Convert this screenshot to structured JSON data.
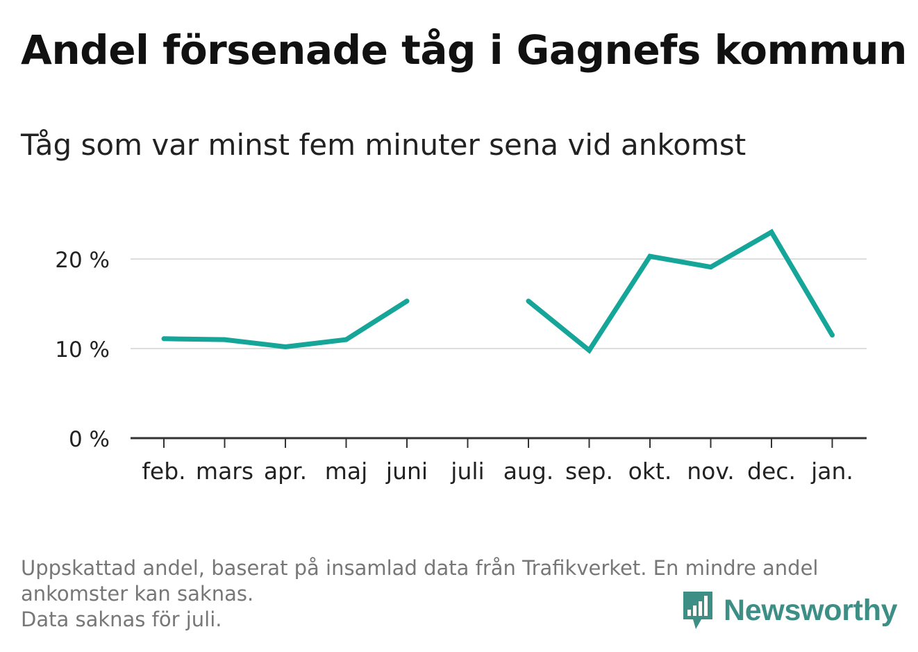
{
  "title": "Andel försenade tåg i Gagnefs kommun",
  "subtitle": "Tåg som var minst fem minuter sena vid ankomst",
  "footnote": {
    "line1": "Uppskattad andel, baserat på insamlad data från Trafikverket. En mindre andel",
    "line2": "ankomster kan saknas.",
    "line3": "Data saknas för juli."
  },
  "brand": {
    "name": "Newsworthy",
    "color": "#3d8f86"
  },
  "colors": {
    "line": "#16a599",
    "grid": "#dddddd",
    "axis": "#333333"
  },
  "chart_data": {
    "type": "line",
    "categories": [
      "feb.",
      "mars",
      "apr.",
      "maj",
      "juni",
      "juli",
      "aug.",
      "sep.",
      "okt.",
      "nov.",
      "dec.",
      "jan."
    ],
    "values": [
      11.1,
      11.0,
      10.2,
      11.0,
      15.3,
      null,
      15.3,
      9.8,
      20.3,
      19.1,
      23.0,
      11.5
    ],
    "y_ticks": [
      0,
      10,
      20
    ],
    "y_tick_labels": [
      "0 %",
      "10 %",
      "20 %"
    ],
    "ylim": [
      0,
      25
    ],
    "grid": true,
    "xlabel": "",
    "ylabel": ""
  }
}
